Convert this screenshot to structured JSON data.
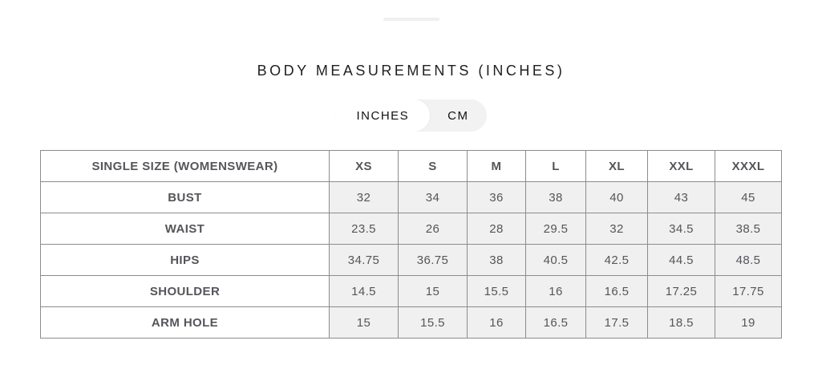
{
  "title": "BODY MEASUREMENTS (INCHES)",
  "unit_toggle": {
    "options": [
      {
        "label": "INCHES",
        "selected": true
      },
      {
        "label": "CM",
        "selected": false
      }
    ]
  },
  "table": {
    "header": [
      "SINGLE SIZE (WOMENSWEAR)",
      "XS",
      "S",
      "M",
      "L",
      "XL",
      "XXL",
      "XXXL"
    ],
    "rows": [
      {
        "label": "BUST",
        "values": [
          "32",
          "34",
          "36",
          "38",
          "40",
          "43",
          "45"
        ]
      },
      {
        "label": "WAIST",
        "values": [
          "23.5",
          "26",
          "28",
          "29.5",
          "32",
          "34.5",
          "38.5"
        ]
      },
      {
        "label": "HIPS",
        "values": [
          "34.75",
          "36.75",
          "38",
          "40.5",
          "42.5",
          "44.5",
          "48.5"
        ]
      },
      {
        "label": "SHOULDER",
        "values": [
          "14.5",
          "15",
          "15.5",
          "16",
          "16.5",
          "17.25",
          "17.75"
        ]
      },
      {
        "label": "ARM HOLE",
        "values": [
          "15",
          "15.5",
          "16",
          "16.5",
          "17.5",
          "18.5",
          "19"
        ]
      }
    ]
  },
  "colors": {
    "toggle_background": "#f2f2f2",
    "toggle_selected_background": "#ffffff",
    "table_border": "#8c8c8c",
    "data_cell_background": "#f0f0f0",
    "table_text": "#55565a",
    "title_text": "#1f1f1f"
  }
}
